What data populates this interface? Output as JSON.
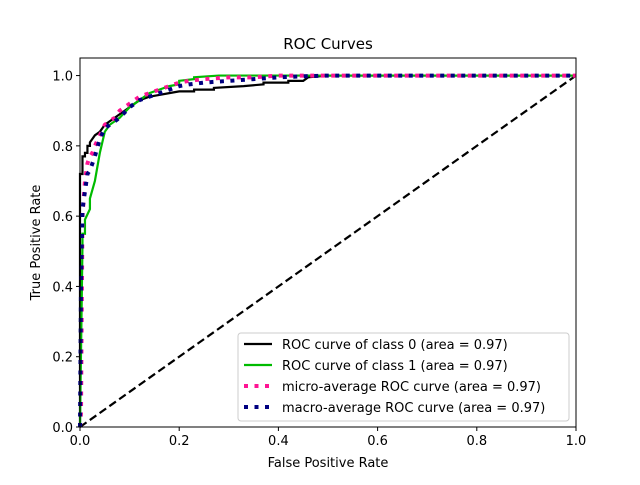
{
  "chart_data": {
    "type": "line",
    "title": "ROC Curves",
    "xlabel": "False Positive Rate",
    "ylabel": "True Positive Rate",
    "xlim": [
      0,
      1
    ],
    "ylim": [
      0,
      1.05
    ],
    "x_ticks": [
      0,
      0.2,
      0.4,
      0.6,
      0.8,
      1
    ],
    "y_ticks": [
      0,
      0.2,
      0.4,
      0.6,
      0.8,
      1
    ],
    "x_tick_labels": [
      "0.0",
      "0.2",
      "0.4",
      "0.6",
      "0.8",
      "1.0"
    ],
    "y_tick_labels": [
      "0.0",
      "0.2",
      "0.4",
      "0.6",
      "0.8",
      "1.0"
    ],
    "grid": false,
    "legend_position": "lower-right",
    "series": [
      {
        "name": "ROC curve of class 0 (area = 0.97)",
        "color": "#000000",
        "style": "solid",
        "x": [
          0,
          0,
          0.005,
          0.005,
          0.01,
          0.01,
          0.015,
          0.015,
          0.02,
          0.02,
          0.025,
          0.03,
          0.04,
          0.05,
          0.06,
          0.07,
          0.08,
          0.09,
          0.1,
          0.12,
          0.14,
          0.16,
          0.18,
          0.2,
          0.23,
          0.23,
          0.27,
          0.27,
          0.33,
          0.37,
          0.37,
          0.42,
          0.42,
          0.45,
          0.46,
          0.5,
          0.6,
          0.8,
          1.0
        ],
        "y": [
          0,
          0.72,
          0.72,
          0.77,
          0.77,
          0.78,
          0.78,
          0.8,
          0.8,
          0.81,
          0.82,
          0.83,
          0.84,
          0.86,
          0.87,
          0.88,
          0.89,
          0.9,
          0.91,
          0.93,
          0.94,
          0.945,
          0.95,
          0.955,
          0.955,
          0.96,
          0.96,
          0.965,
          0.97,
          0.975,
          0.98,
          0.98,
          0.985,
          0.985,
          0.995,
          1.0,
          1.0,
          1.0,
          1.0
        ]
      },
      {
        "name": "ROC curve of class 1 (area = 0.97)",
        "color": "#00bb00",
        "style": "solid",
        "x": [
          0,
          0.005,
          0.005,
          0.01,
          0.01,
          0.02,
          0.02,
          0.03,
          0.04,
          0.05,
          0.06,
          0.07,
          0.08,
          0.1,
          0.12,
          0.14,
          0.16,
          0.18,
          0.2,
          0.2,
          0.23,
          0.23,
          0.28,
          0.35,
          0.5,
          0.7,
          1.0
        ],
        "y": [
          0,
          0.52,
          0.55,
          0.55,
          0.59,
          0.62,
          0.65,
          0.7,
          0.78,
          0.84,
          0.86,
          0.87,
          0.88,
          0.91,
          0.93,
          0.95,
          0.96,
          0.97,
          0.975,
          0.985,
          0.99,
          0.995,
          1.0,
          1.0,
          1.0,
          1.0,
          1.0
        ]
      },
      {
        "name": "micro-average ROC curve (area = 0.97)",
        "color": "#ff1493",
        "style": "dotted",
        "x": [
          0,
          0.002,
          0.005,
          0.01,
          0.015,
          0.02,
          0.025,
          0.03,
          0.04,
          0.05,
          0.06,
          0.07,
          0.08,
          0.09,
          0.1,
          0.12,
          0.14,
          0.16,
          0.18,
          0.2,
          0.22,
          0.25,
          0.3,
          0.35,
          0.4,
          0.45,
          0.5,
          0.7,
          1.0
        ],
        "y": [
          0,
          0.04,
          0.6,
          0.7,
          0.75,
          0.77,
          0.78,
          0.8,
          0.83,
          0.86,
          0.87,
          0.88,
          0.9,
          0.91,
          0.92,
          0.94,
          0.95,
          0.96,
          0.97,
          0.98,
          0.985,
          0.99,
          0.995,
          0.995,
          1.0,
          1.0,
          1.0,
          1.0,
          1.0
        ]
      },
      {
        "name": "macro-average ROC curve (area = 0.97)",
        "color": "#000080",
        "style": "dotted",
        "x": [
          0,
          0.002,
          0.005,
          0.01,
          0.015,
          0.02,
          0.03,
          0.04,
          0.05,
          0.06,
          0.07,
          0.08,
          0.1,
          0.12,
          0.14,
          0.16,
          0.18,
          0.2,
          0.22,
          0.25,
          0.3,
          0.35,
          0.4,
          0.45,
          0.5,
          0.7,
          1.0
        ],
        "y": [
          0,
          0.4,
          0.62,
          0.67,
          0.72,
          0.73,
          0.77,
          0.82,
          0.85,
          0.86,
          0.87,
          0.88,
          0.91,
          0.93,
          0.94,
          0.95,
          0.96,
          0.97,
          0.975,
          0.98,
          0.985,
          0.99,
          0.995,
          0.998,
          1.0,
          1.0,
          1.0
        ]
      }
    ],
    "reference_line": {
      "x": [
        0,
        1
      ],
      "y": [
        0,
        1
      ],
      "color": "#000000",
      "style": "dashed"
    }
  }
}
